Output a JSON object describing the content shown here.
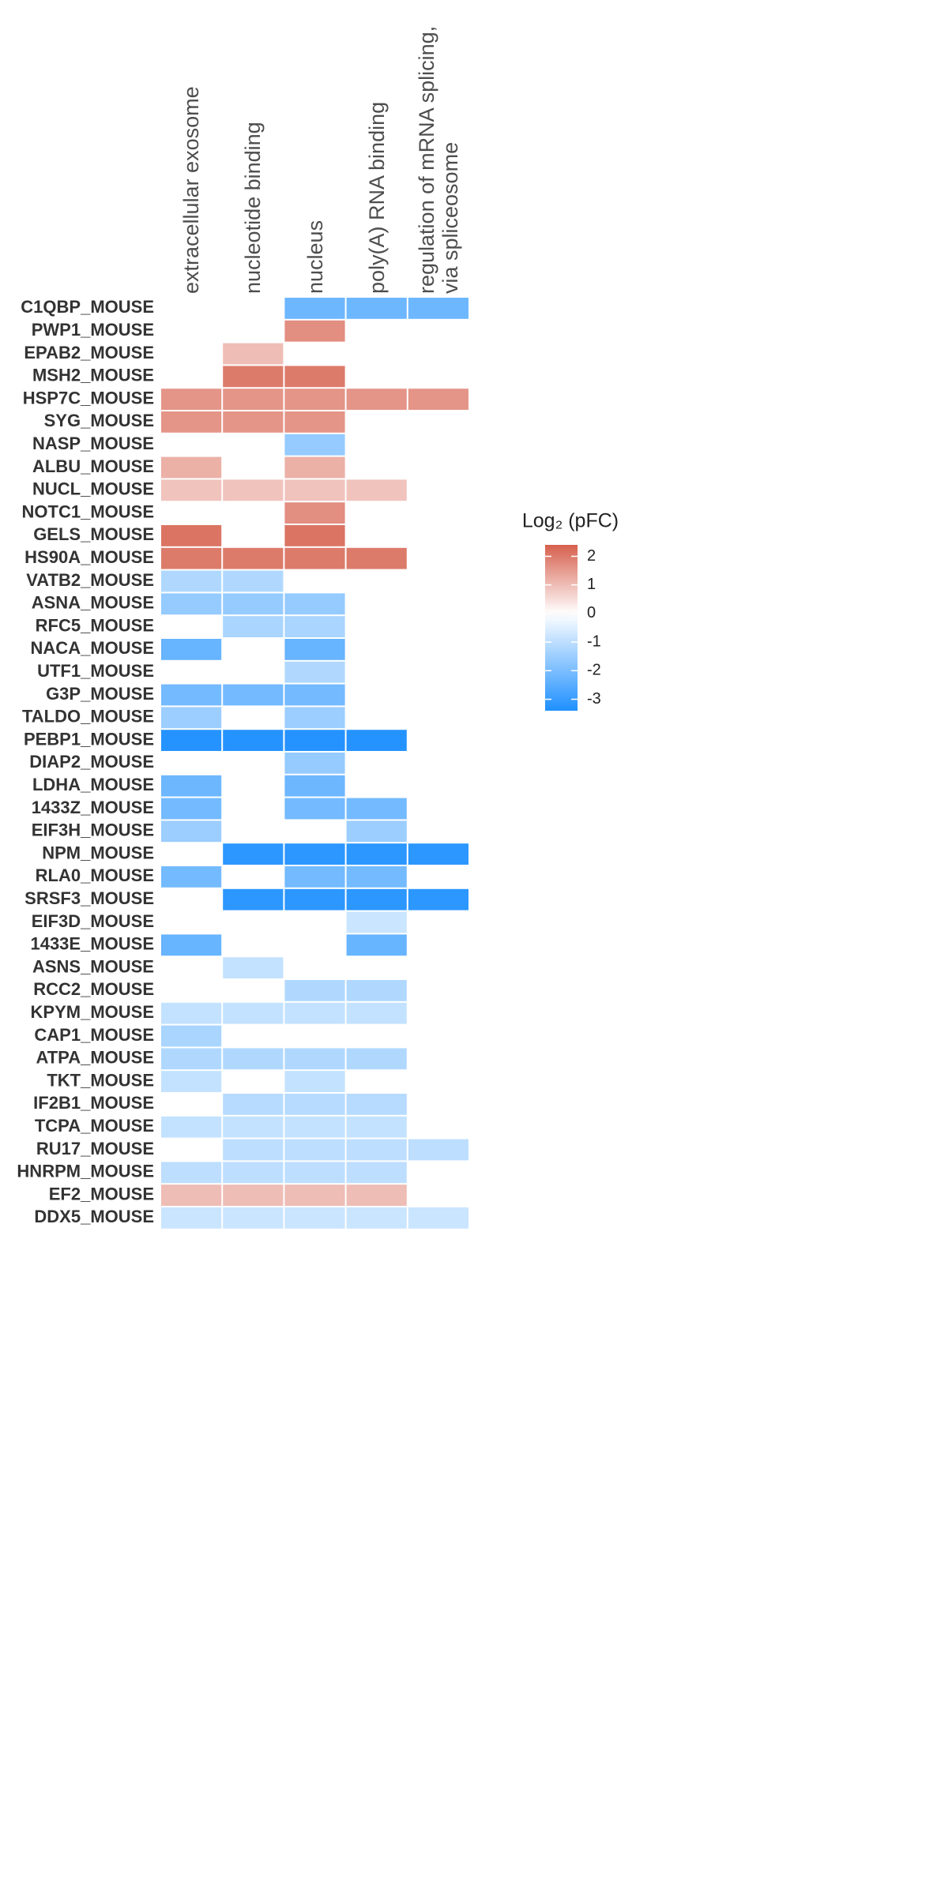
{
  "chart_data": {
    "type": "heatmap",
    "x": [
      "extracellular exosome",
      "nucleotide binding",
      "nucleus",
      "poly(A) RNA binding",
      "regulation of mRNA splicing, via spliceosome"
    ],
    "y": [
      "C1QBP_MOUSE",
      "PWP1_MOUSE",
      "EPAB2_MOUSE",
      "MSH2_MOUSE",
      "HSP7C_MOUSE",
      "SYG_MOUSE",
      "NASP_MOUSE",
      "ALBU_MOUSE",
      "NUCL_MOUSE",
      "NOTC1_MOUSE",
      "GELS_MOUSE",
      "HS90A_MOUSE",
      "VATB2_MOUSE",
      "ASNA_MOUSE",
      "RFC5_MOUSE",
      "NACA_MOUSE",
      "UTF1_MOUSE",
      "G3P_MOUSE",
      "TALDO_MOUSE",
      "PEBP1_MOUSE",
      "DIAP2_MOUSE",
      "LDHA_MOUSE",
      "1433Z_MOUSE",
      "EIF3H_MOUSE",
      "NPM_MOUSE",
      "RLA0_MOUSE",
      "SRSF3_MOUSE",
      "EIF3D_MOUSE",
      "1433E_MOUSE",
      "ASNS_MOUSE",
      "RCC2_MOUSE",
      "KPYM_MOUSE",
      "CAP1_MOUSE",
      "ATPA_MOUSE",
      "TKT_MOUSE",
      "IF2B1_MOUSE",
      "TCPA_MOUSE",
      "RU17_MOUSE",
      "HNRPM_MOUSE",
      "EF2_MOUSE",
      "DDX5_MOUSE"
    ],
    "values": [
      [
        null,
        null,
        -2.2,
        -2.2,
        -2.2
      ],
      [
        null,
        null,
        1.7,
        null,
        null
      ],
      [
        null,
        1.0,
        null,
        null,
        null
      ],
      [
        null,
        2.0,
        2.0,
        null,
        null
      ],
      [
        1.6,
        1.6,
        1.6,
        1.6,
        1.6
      ],
      [
        1.6,
        1.6,
        1.6,
        null,
        null
      ],
      [
        null,
        null,
        -1.6,
        null,
        null
      ],
      [
        1.2,
        null,
        1.2,
        null,
        null
      ],
      [
        0.9,
        0.9,
        0.9,
        0.9,
        null
      ],
      [
        null,
        null,
        1.7,
        null,
        null
      ],
      [
        2.1,
        null,
        2.1,
        null,
        null
      ],
      [
        2.0,
        2.0,
        2.0,
        2.0,
        null
      ],
      [
        -1.2,
        -1.2,
        null,
        null,
        null
      ],
      [
        -1.6,
        -1.6,
        -1.6,
        null,
        null
      ],
      [
        null,
        -1.3,
        -1.3,
        null,
        null
      ],
      [
        -2.3,
        null,
        -2.3,
        null,
        null
      ],
      [
        null,
        null,
        -1.2,
        null,
        null
      ],
      [
        -2.1,
        -2.1,
        -2.1,
        null,
        null
      ],
      [
        -1.5,
        null,
        -1.5,
        null,
        null
      ],
      [
        -3.3,
        -3.3,
        -3.3,
        -3.3,
        null
      ],
      [
        null,
        null,
        -1.6,
        null,
        null
      ],
      [
        -2.2,
        null,
        -2.2,
        null,
        null
      ],
      [
        -2.1,
        null,
        -2.1,
        -2.1,
        null
      ],
      [
        -1.5,
        null,
        null,
        -1.5,
        null
      ],
      [
        null,
        -3.2,
        -3.2,
        -3.2,
        -3.2
      ],
      [
        -2.1,
        null,
        -2.1,
        -2.1,
        null
      ],
      [
        null,
        -3.2,
        -3.2,
        -3.2,
        -3.2
      ],
      [
        null,
        null,
        null,
        -0.8,
        null
      ],
      [
        -2.3,
        null,
        null,
        -2.3,
        null
      ],
      [
        null,
        -0.9,
        null,
        null,
        null
      ],
      [
        null,
        null,
        -1.2,
        -1.2,
        null
      ],
      [
        -0.9,
        -0.9,
        -0.9,
        -0.9,
        null
      ],
      [
        -1.3,
        null,
        null,
        null,
        null
      ],
      [
        -1.2,
        -1.2,
        -1.2,
        -1.2,
        null
      ],
      [
        -0.9,
        null,
        -0.9,
        null,
        null
      ],
      [
        null,
        -1.1,
        -1.1,
        -1.1,
        null
      ],
      [
        -0.9,
        -0.9,
        -0.9,
        -0.9,
        null
      ],
      [
        null,
        -1.0,
        -1.0,
        -1.0,
        -1.0
      ],
      [
        -1.0,
        -1.0,
        -1.0,
        -1.0,
        null
      ],
      [
        1.0,
        1.0,
        1.0,
        1.0,
        null
      ],
      [
        -0.8,
        -0.8,
        -0.8,
        -0.8,
        -0.8
      ]
    ],
    "legend_title": "Log₂ (pFC)",
    "zlim": [
      -3.4,
      2.4
    ],
    "zticks": [
      -3,
      -2,
      -1,
      0,
      1,
      2
    ],
    "colors": {
      "low": "#1E90FF",
      "mid": "#FFFFFF",
      "high": "#D6604D"
    }
  }
}
